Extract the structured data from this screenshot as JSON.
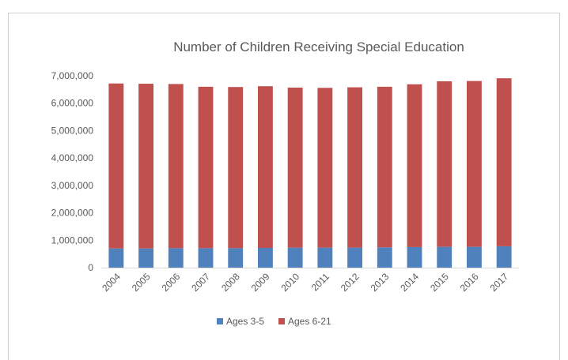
{
  "chart_data": {
    "type": "bar",
    "stacked": true,
    "title": "Number of Children Receiving Special Education",
    "xlabel": "",
    "ylabel": "",
    "categories": [
      "2004",
      "2005",
      "2006",
      "2007",
      "2008",
      "2009",
      "2010",
      "2011",
      "2012",
      "2013",
      "2014",
      "2015",
      "2016",
      "2017"
    ],
    "series": [
      {
        "name": "Ages 3-5",
        "color": "#4f81bd",
        "values": [
          700000,
          700000,
          710000,
          710000,
          710000,
          720000,
          730000,
          730000,
          730000,
          740000,
          750000,
          760000,
          760000,
          780000
        ]
      },
      {
        "name": "Ages 6-21",
        "color": "#c0504d",
        "values": [
          6020000,
          6010000,
          5990000,
          5890000,
          5880000,
          5900000,
          5840000,
          5830000,
          5850000,
          5860000,
          5940000,
          6040000,
          6050000,
          6130000
        ]
      }
    ],
    "ylim": [
      0,
      7000000
    ],
    "yticks": [
      "0",
      "1,000,000",
      "2,000,000",
      "3,000,000",
      "4,000,000",
      "5,000,000",
      "6,000,000",
      "7,000,000"
    ],
    "ytick_values": [
      0,
      1000000,
      2000000,
      3000000,
      4000000,
      5000000,
      6000000,
      7000000
    ],
    "grid": false,
    "legend": "bottom"
  }
}
